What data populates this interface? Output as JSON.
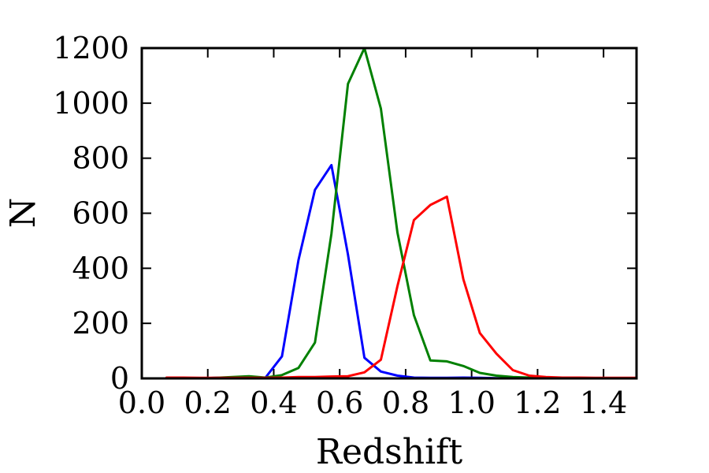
{
  "chart_data": {
    "type": "line",
    "xlabel": "Redshift",
    "ylabel": "N",
    "xlim": [
      0.0,
      1.5
    ],
    "ylim": [
      0,
      1200
    ],
    "xticks": [
      0.0,
      0.2,
      0.4,
      0.6,
      0.8,
      1.0,
      1.2,
      1.4
    ],
    "xtick_labels": [
      "0.0",
      "0.2",
      "0.4",
      "0.6",
      "0.8",
      "1.0",
      "1.2",
      "1.4"
    ],
    "yticks": [
      0,
      200,
      400,
      600,
      800,
      1000,
      1200
    ],
    "ytick_labels": [
      "0",
      "200",
      "400",
      "600",
      "800",
      "1000",
      "1200"
    ],
    "grid": false,
    "x": [
      0.075,
      0.125,
      0.175,
      0.225,
      0.275,
      0.325,
      0.375,
      0.425,
      0.475,
      0.525,
      0.575,
      0.625,
      0.675,
      0.725,
      0.775,
      0.825,
      0.875,
      0.925,
      0.975,
      1.025,
      1.075,
      1.125,
      1.175,
      1.225,
      1.275,
      1.325,
      1.375,
      1.425,
      1.475,
      1.5
    ],
    "series": [
      {
        "color": "#0000ff",
        "values": [
          0,
          0,
          0,
          2,
          2,
          2,
          3,
          80,
          430,
          685,
          775,
          450,
          75,
          25,
          10,
          3,
          2,
          2,
          3,
          2,
          1,
          0,
          0,
          0,
          0,
          0,
          0,
          0,
          0,
          0
        ]
      },
      {
        "color": "#008000",
        "values": [
          0,
          0,
          0,
          2,
          5,
          8,
          3,
          12,
          38,
          130,
          525,
          1070,
          1200,
          980,
          530,
          230,
          65,
          62,
          45,
          20,
          10,
          5,
          3,
          2,
          2,
          1,
          0,
          0,
          0,
          0
        ]
      },
      {
        "color": "#ff0000",
        "values": [
          3,
          3,
          2,
          2,
          2,
          2,
          2,
          3,
          5,
          5,
          7,
          8,
          22,
          68,
          335,
          575,
          630,
          660,
          360,
          165,
          90,
          30,
          10,
          5,
          3,
          3,
          2,
          2,
          2,
          2
        ]
      }
    ]
  }
}
